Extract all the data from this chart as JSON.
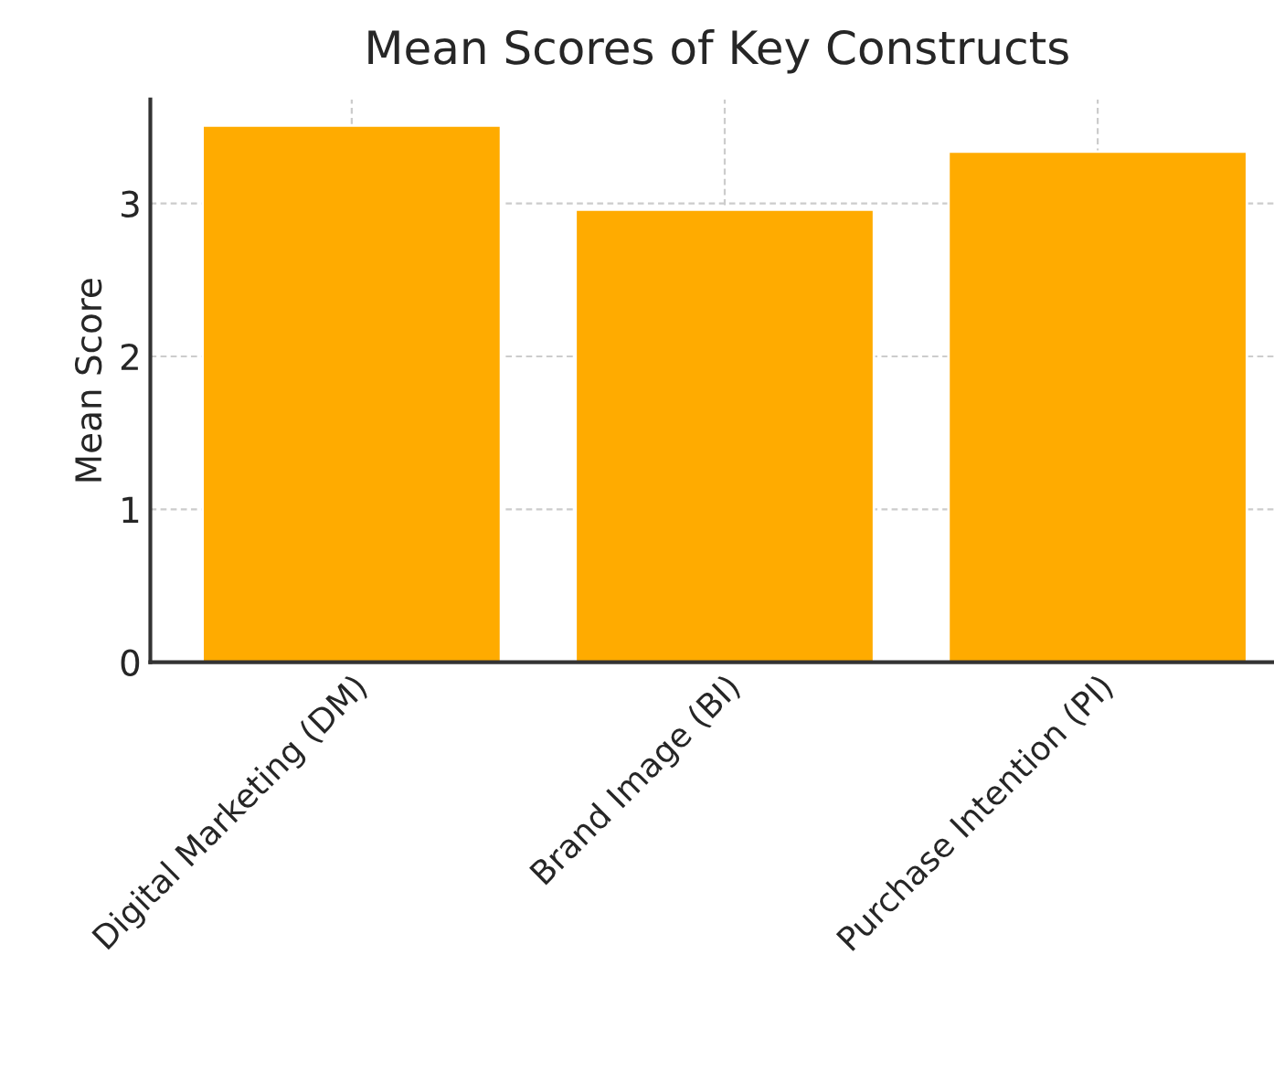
{
  "chart_data": {
    "type": "bar",
    "title": "Mean Scores of Key Constructs",
    "ylabel": "Mean Score",
    "categories": [
      "Digital Marketing (DM)",
      "Brand Image (BI)",
      "Purchase Intention (PI)"
    ],
    "values": [
      3.51,
      2.96,
      3.34
    ],
    "color": "#ffab00",
    "ylim": [
      0,
      3.68
    ],
    "yticks": [
      0,
      1,
      2,
      3
    ],
    "grid": true
  }
}
